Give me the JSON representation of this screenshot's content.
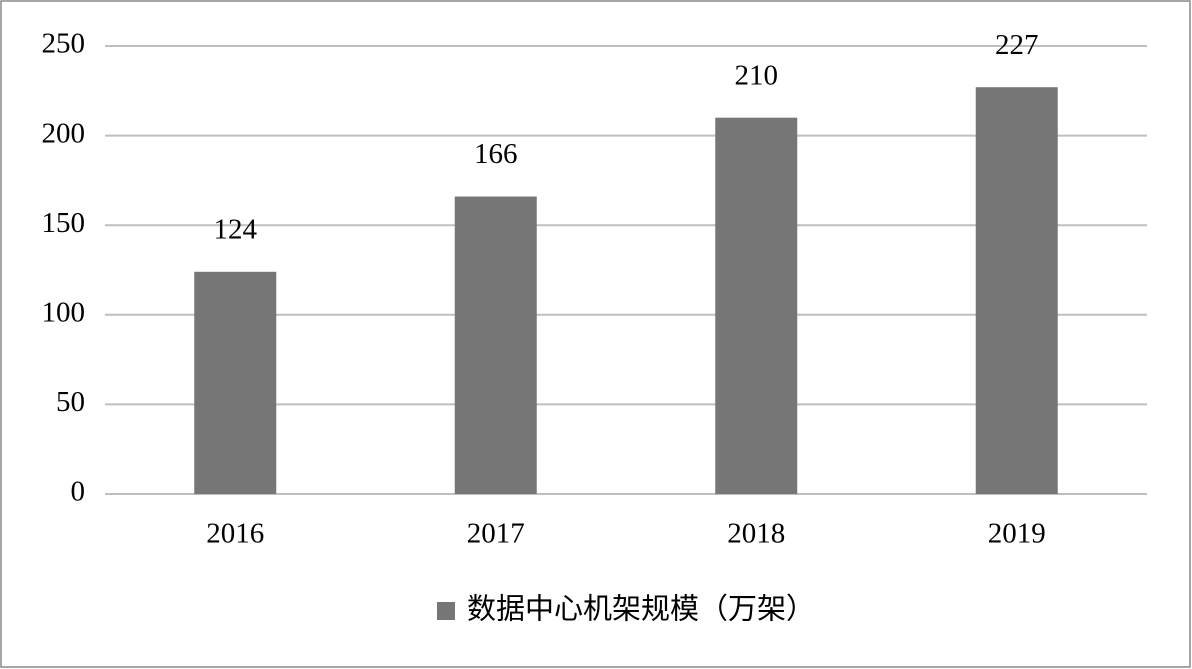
{
  "chart_data": {
    "type": "bar",
    "categories": [
      "2016",
      "2017",
      "2018",
      "2019"
    ],
    "series": [
      {
        "name": "数据中心机架规模（万架）",
        "color": "#767676",
        "values": [
          124,
          166,
          210,
          227
        ]
      }
    ],
    "ylim": [
      0,
      250
    ],
    "yticks": [
      0,
      50,
      100,
      150,
      200,
      250
    ],
    "grid": true,
    "legend": "bottom"
  }
}
